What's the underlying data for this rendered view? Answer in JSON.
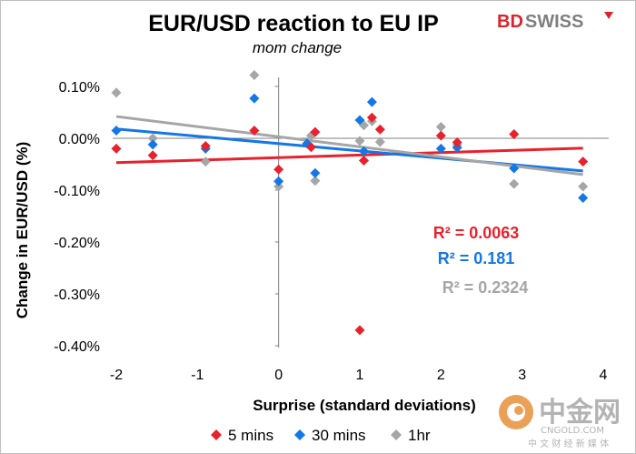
{
  "chart_data": {
    "type": "scatter",
    "title": "EUR/USD reaction to EU IP",
    "subtitle": "mom change",
    "xlabel": "Surprise (standard deviations)",
    "ylabel": "Change in EUR/USD  (%)",
    "xlim": [
      -2,
      4
    ],
    "ylim": [
      -0.4,
      0.1
    ],
    "x_ticks": [
      -2,
      -1,
      0,
      1,
      2,
      3,
      4
    ],
    "x_tick_labels": [
      "-2",
      "-1",
      "0",
      "1",
      "2",
      "3",
      "4"
    ],
    "y_ticks": [
      0.1,
      0.0,
      -0.1,
      -0.2,
      -0.3,
      -0.4
    ],
    "y_tick_labels": [
      "0.10%",
      "0.00%",
      "-0.10%",
      "-0.20%",
      "-0.30%",
      "-0.40%"
    ],
    "grid": false,
    "legend_position": "bottom",
    "series": [
      {
        "name": "5 mins",
        "color": "#e8222d",
        "marker": "diamond",
        "r2_label": "R² = 0.0063",
        "trend": {
          "x": [
            -2,
            3.75
          ],
          "y": [
            -0.047,
            -0.019
          ]
        },
        "points": [
          [
            -2,
            -0.02
          ],
          [
            -1.55,
            -0.033
          ],
          [
            -0.9,
            -0.015
          ],
          [
            -0.3,
            0.015
          ],
          [
            0,
            -0.06
          ],
          [
            0.4,
            -0.017
          ],
          [
            0.45,
            0.012
          ],
          [
            1.0,
            -0.37
          ],
          [
            1.05,
            -0.043
          ],
          [
            1.15,
            0.04
          ],
          [
            1.25,
            0.017
          ],
          [
            2.0,
            0.005
          ],
          [
            2.2,
            -0.008
          ],
          [
            2.9,
            0.008
          ],
          [
            3.75,
            -0.045
          ]
        ]
      },
      {
        "name": "30 mins",
        "color": "#1477e6",
        "marker": "diamond",
        "r2_label": "R² = 0.181",
        "trend": {
          "x": [
            -2,
            3.75
          ],
          "y": [
            0.018,
            -0.063
          ]
        },
        "points": [
          [
            -2,
            0.015
          ],
          [
            -1.55,
            -0.012
          ],
          [
            -0.9,
            -0.02
          ],
          [
            -0.3,
            0.077
          ],
          [
            0,
            -0.083
          ],
          [
            0.35,
            -0.01
          ],
          [
            0.45,
            -0.067
          ],
          [
            1.0,
            0.035
          ],
          [
            1.05,
            -0.025
          ],
          [
            1.15,
            0.07
          ],
          [
            2.0,
            -0.02
          ],
          [
            2.2,
            -0.018
          ],
          [
            2.9,
            -0.058
          ],
          [
            3.75,
            -0.115
          ]
        ]
      },
      {
        "name": "1hr",
        "color": "#a6a6a6",
        "marker": "diamond",
        "r2_label": "R² = 0.2324",
        "trend": {
          "x": [
            -2,
            3.75
          ],
          "y": [
            0.042,
            -0.07
          ]
        },
        "points": [
          [
            -2,
            0.088
          ],
          [
            -1.55,
            0.0
          ],
          [
            -0.9,
            -0.045
          ],
          [
            -0.3,
            0.122
          ],
          [
            0,
            -0.093
          ],
          [
            0.4,
            0.005
          ],
          [
            0.45,
            -0.082
          ],
          [
            1.0,
            -0.005
          ],
          [
            1.05,
            0.025
          ],
          [
            1.15,
            0.033
          ],
          [
            1.25,
            -0.007
          ],
          [
            2.0,
            0.022
          ],
          [
            2.2,
            -0.013
          ],
          [
            2.9,
            -0.088
          ],
          [
            3.75,
            -0.093
          ]
        ]
      }
    ]
  },
  "brand": {
    "bd": "BD",
    "swiss": "SWISS",
    "bd_color": "#d9232e",
    "swiss_color": "#7f7f7f"
  },
  "watermark": {
    "main": "中金网",
    "domain": "CNGOLD.COM",
    "tagline": "中 文 财 经 新 媒 体"
  }
}
